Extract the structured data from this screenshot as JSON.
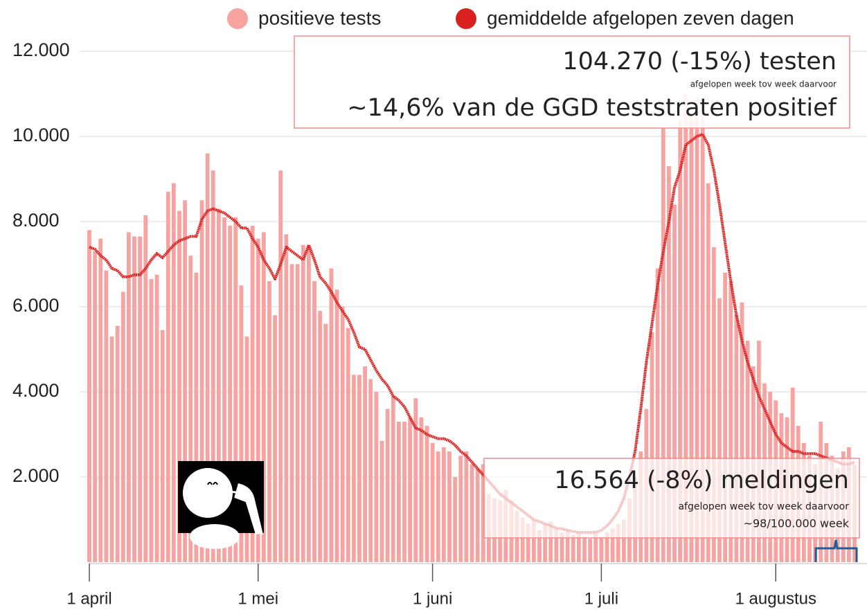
{
  "chart_data": {
    "type": "bar_line",
    "categories": [
      "1 april",
      null,
      null,
      null,
      null,
      null,
      null,
      null,
      null,
      null,
      null,
      null,
      null,
      null,
      null,
      null,
      null,
      null,
      null,
      null,
      null,
      null,
      null,
      null,
      null,
      null,
      null,
      null,
      null,
      null,
      "1 mei",
      null,
      null,
      null,
      null,
      null,
      null,
      null,
      null,
      null,
      null,
      null,
      null,
      null,
      null,
      null,
      null,
      null,
      null,
      null,
      null,
      null,
      null,
      null,
      null,
      null,
      null,
      null,
      null,
      null,
      null,
      "1 juni",
      null,
      null,
      null,
      null,
      null,
      null,
      null,
      null,
      null,
      null,
      null,
      null,
      null,
      null,
      null,
      null,
      null,
      null,
      null,
      null,
      null,
      null,
      null,
      null,
      null,
      null,
      null,
      null,
      null,
      "1 juli",
      null,
      null,
      null,
      null,
      null,
      null,
      null,
      null,
      null,
      null,
      null,
      null,
      null,
      null,
      null,
      null,
      null,
      null,
      null,
      null,
      null,
      null,
      null,
      null,
      null,
      null,
      null,
      null,
      null,
      null,
      "1 augustus",
      null,
      null,
      null,
      null,
      null,
      null,
      null,
      null,
      null,
      null,
      null,
      null,
      null,
      null
    ],
    "series": [
      {
        "name": "positieve tests",
        "color": "#f6a3a1",
        "kind": "bar",
        "values": [
          7800,
          7300,
          7600,
          6850,
          5300,
          5550,
          6350,
          7750,
          7650,
          7650,
          8150,
          6650,
          6750,
          5450,
          8700,
          8900,
          8250,
          8500,
          7200,
          6800,
          8500,
          9600,
          9200,
          8300,
          8100,
          7900,
          8100,
          6500,
          5300,
          7900,
          7600,
          7750,
          6600,
          5800,
          9200,
          7700,
          7000,
          7000,
          7450,
          7400,
          6600,
          5900,
          5600,
          6900,
          6400,
          6000,
          5500,
          4400,
          4400,
          4600,
          4300,
          4000,
          2850,
          3600,
          3900,
          3300,
          3300,
          3400,
          3850,
          3400,
          3200,
          2800,
          2600,
          2700,
          2600,
          2000,
          2500,
          2600,
          2300,
          2200,
          2300,
          1600,
          1500,
          1450,
          1700,
          1450,
          1200,
          1050,
          900,
          1000,
          750,
          900,
          950,
          800,
          700,
          750,
          650,
          700,
          600,
          550,
          700,
          600,
          700,
          800,
          900,
          1000,
          1500,
          2000,
          2600,
          3600,
          5400,
          6900,
          10200,
          9300,
          8400,
          10400,
          11000,
          10500,
          10900,
          10700,
          8900,
          7400,
          6200,
          6800,
          6600,
          5800,
          6100,
          5200,
          4600,
          5200,
          4200,
          4000,
          3800,
          3500,
          3400,
          4100,
          3200,
          2800,
          2500,
          2300,
          3300,
          2800,
          2500,
          2200,
          2600,
          2700,
          2300
        ]
      },
      {
        "name": "gemiddelde afgelopen zeven dagen",
        "color": "#d8211f",
        "kind": "line",
        "values": [
          7400,
          7350,
          7200,
          7100,
          6900,
          6850,
          6700,
          6700,
          6750,
          6750,
          6900,
          7100,
          7250,
          7150,
          7300,
          7450,
          7550,
          7600,
          7650,
          7650,
          8050,
          8250,
          8300,
          8250,
          8200,
          8100,
          8000,
          7850,
          7850,
          7600,
          7400,
          7100,
          6900,
          6650,
          7000,
          7400,
          7300,
          7200,
          7100,
          7450,
          7100,
          6700,
          6550,
          6350,
          6100,
          5900,
          5700,
          5400,
          5050,
          5000,
          4750,
          4500,
          4300,
          4150,
          3900,
          3800,
          3650,
          3400,
          3150,
          3100,
          3000,
          2950,
          2900,
          2900,
          2850,
          2750,
          2600,
          2500,
          2350,
          2200,
          2050,
          1900,
          1750,
          1600,
          1500,
          1400,
          1300,
          1200,
          1100,
          1000,
          950,
          900,
          850,
          800,
          780,
          750,
          720,
          700,
          700,
          700,
          700,
          750,
          850,
          1000,
          1200,
          1500,
          2000,
          2600,
          3600,
          4700,
          5600,
          6500,
          7300,
          8000,
          8800,
          9200,
          9800,
          9900,
          10000,
          10050,
          9800,
          9200,
          8400,
          7500,
          6600,
          5800,
          5200,
          4700,
          4300,
          3900,
          3600,
          3300,
          3000,
          2800,
          2700,
          2600,
          2600,
          2550,
          2550,
          2550,
          2500,
          2450,
          2400,
          2350,
          2300,
          2300,
          2350
        ]
      }
    ],
    "ylim": [
      0,
      12000
    ],
    "yticks": [
      {
        "value": 2000,
        "label": "2.000"
      },
      {
        "value": 4000,
        "label": "4.000"
      },
      {
        "value": 6000,
        "label": "6.000"
      },
      {
        "value": 8000,
        "label": "8.000"
      },
      {
        "value": 10000,
        "label": "10.000"
      },
      {
        "value": 12000,
        "label": "12.000"
      }
    ],
    "grid": true,
    "annotations": [
      [
        "104.270 (-15%) testen",
        "afgelopen week tov week daarvoor",
        "~14,6% van de GGD teststraten positief"
      ],
      [
        "16.564 (-8%) meldingen",
        "afgelopen week tov week daarvoor",
        "~98/100.000 week"
      ]
    ]
  }
}
